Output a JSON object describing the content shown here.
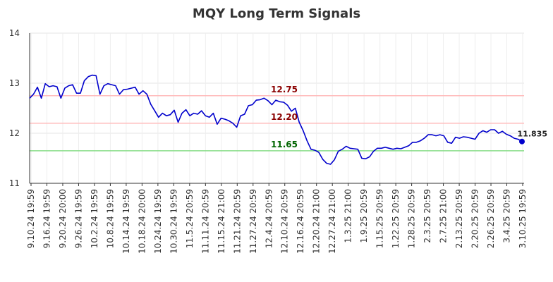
{
  "chart_data": {
    "type": "line",
    "title": "MQY Long Term Signals",
    "xlabel": "",
    "ylabel": "",
    "ylim": [
      11,
      14
    ],
    "y_ticks": [
      "11",
      "12",
      "13",
      "14"
    ],
    "x_tick_labels": [
      "9.10.24 19:59",
      "9.16.24 19:59",
      "9.20.24 20:00",
      "9.26.24 19:59",
      "10.2.24 19:59",
      "10.8.24 19:59",
      "10.14.24 19:59",
      "10.18.24 20:00",
      "10.24.24 19:59",
      "10.30.24 19:59",
      "11.5.24 20:59",
      "11.11.24 20:59",
      "11.15.24 21:00",
      "11.21.24 20:59",
      "11.27.24 20:59",
      "12.4.24 20:59",
      "12.10.24 20:59",
      "12.16.24 20:59",
      "12.20.24 21:00",
      "12.27.24 21:00",
      "1.3.25 21:00",
      "1.9.25 20:59",
      "1.15.25 20:59",
      "1.22.25 20:59",
      "1.28.25 20:59",
      "2.3.25 20:59",
      "2.7.25 21:00",
      "2.13.25 20:59",
      "2.20.25 20:59",
      "2.26.25 20:59",
      "3.4.25 20:59",
      "3.10.25 19:59"
    ],
    "grid": true,
    "series": [
      {
        "color": "#0000cc",
        "values": [
          12.7,
          12.78,
          12.92,
          12.7,
          12.99,
          12.93,
          12.95,
          12.93,
          12.7,
          12.9,
          12.95,
          12.97,
          12.8,
          12.8,
          13.05,
          13.13,
          13.16,
          13.15,
          12.78,
          12.95,
          12.99,
          12.97,
          12.95,
          12.78,
          12.87,
          12.88,
          12.9,
          12.92,
          12.78,
          12.85,
          12.78,
          12.58,
          12.45,
          12.32,
          12.4,
          12.35,
          12.37,
          12.46,
          12.22,
          12.4,
          12.47,
          12.35,
          12.4,
          12.38,
          12.45,
          12.35,
          12.32,
          12.4,
          12.18,
          12.3,
          12.28,
          12.25,
          12.2,
          12.12,
          12.35,
          12.38,
          12.55,
          12.57,
          12.66,
          12.67,
          12.7,
          12.65,
          12.57,
          12.66,
          12.63,
          12.62,
          12.56,
          12.44,
          12.5,
          12.22,
          12.05,
          11.85,
          11.68,
          11.66,
          11.62,
          11.48,
          11.4,
          11.38,
          11.47,
          11.64,
          11.68,
          11.74,
          11.7,
          11.69,
          11.68,
          11.5,
          11.49,
          11.53,
          11.64,
          11.7,
          11.7,
          11.72,
          11.7,
          11.68,
          11.7,
          11.69,
          11.72,
          11.75,
          11.82,
          11.82,
          11.85,
          11.9,
          11.97,
          11.97,
          11.95,
          11.97,
          11.95,
          11.82,
          11.8,
          11.92,
          11.9,
          11.93,
          11.92,
          11.9,
          11.88,
          12.0,
          12.05,
          12.02,
          12.07,
          12.07,
          12.0,
          12.04,
          11.98,
          11.95,
          11.9,
          11.88,
          11.84
        ]
      }
    ],
    "reference_lines": [
      {
        "value": 12.75,
        "label": "12.75",
        "line_color": "#ffbbbb",
        "label_color": "#8b0000"
      },
      {
        "value": 12.2,
        "label": "12.20",
        "line_color": "#ffbbbb",
        "label_color": "#8b0000"
      },
      {
        "value": 11.65,
        "label": "11.65",
        "line_color": "#88dd88",
        "label_color": "#006400"
      }
    ],
    "last_value": {
      "value": 11.835,
      "label": "11.835",
      "marker_color": "#0000cc"
    }
  }
}
